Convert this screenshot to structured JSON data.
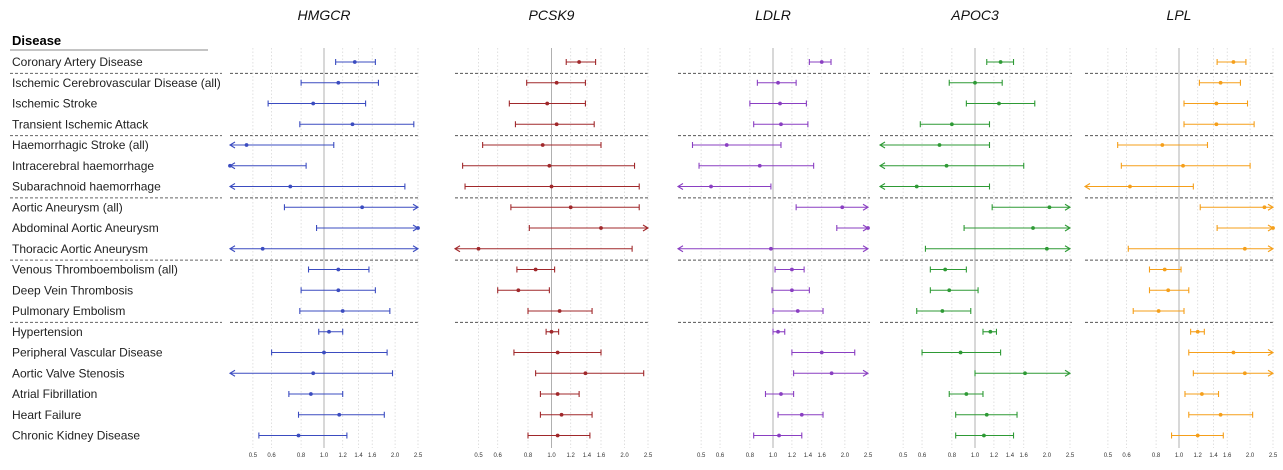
{
  "chart_data": {
    "type": "forest",
    "header": "Disease",
    "diseases": [
      "Coronary Artery Disease",
      "Ischemic Cerebrovascular Disease (all)",
      "Ischemic Stroke",
      "Transient Ischemic Attack",
      "Haemorrhagic Stroke (all)",
      "Intracerebral haemorrhage",
      "Subarachnoid haemorrhage",
      "Aortic Aneurysm (all)",
      "Abdominal Aortic Aneurysm",
      "Thoracic Aortic Aneurysm",
      "Venous Thromboembolism (all)",
      "Deep Vein Thrombosis",
      "Pulmonary Embolism",
      "Hypertension",
      "Peripheral Vascular Disease",
      "Aortic Valve Stenosis",
      "Atrial Fibrillation",
      "Heart Failure",
      "Chronic Kidney Disease"
    ],
    "group_breaks_after": [
      0,
      3,
      6,
      9,
      12
    ],
    "x_scale": "log",
    "xlim": [
      0.4,
      2.5
    ],
    "ticks": [
      {
        "v": 0.5,
        "label": "0.5"
      },
      {
        "v": 0.6,
        "label": "0.6"
      },
      {
        "v": 0.8,
        "label": "0.8"
      },
      {
        "v": 1.0,
        "label": "1.0"
      },
      {
        "v": 1.2,
        "label": "1.2"
      },
      {
        "v": 1.4,
        "label": "1.4"
      },
      {
        "v": 1.6,
        "label": "1.6"
      },
      {
        "v": 2.0,
        "label": "2.0"
      },
      {
        "v": 2.5,
        "label": "2.5"
      }
    ],
    "reference_line": 1.0,
    "grid": true,
    "series": [
      {
        "name": "HMGCR",
        "color": "#3b4cc0",
        "points": [
          [
            1.35,
            1.12,
            1.65
          ],
          [
            1.15,
            0.8,
            1.7
          ],
          [
            0.9,
            0.58,
            1.5
          ],
          [
            1.32,
            0.79,
            2.4
          ],
          [
            0.47,
            0.4,
            1.1
          ],
          [
            0.4,
            0.4,
            0.84
          ],
          [
            0.72,
            0.4,
            2.2
          ],
          [
            1.45,
            0.68,
            2.5
          ],
          [
            2.5,
            0.93,
            2.5
          ],
          [
            0.55,
            0.4,
            2.5
          ],
          [
            1.15,
            0.86,
            1.55
          ],
          [
            1.15,
            0.8,
            1.65
          ],
          [
            1.2,
            0.79,
            1.9
          ],
          [
            1.05,
            0.95,
            1.2
          ],
          [
            1.0,
            0.6,
            1.85
          ],
          [
            0.9,
            0.4,
            1.95
          ],
          [
            0.88,
            0.71,
            1.2
          ],
          [
            1.16,
            0.78,
            1.8
          ],
          [
            0.78,
            0.53,
            1.25
          ]
        ]
      },
      {
        "name": "PCSK9",
        "color": "#a0282b",
        "points": [
          [
            1.3,
            1.15,
            1.52
          ],
          [
            1.05,
            0.79,
            1.38
          ],
          [
            0.96,
            0.67,
            1.38
          ],
          [
            1.05,
            0.71,
            1.5
          ],
          [
            0.92,
            0.52,
            1.6
          ],
          [
            0.98,
            0.43,
            2.2
          ],
          [
            1.0,
            0.44,
            2.3
          ],
          [
            1.2,
            0.68,
            2.3
          ],
          [
            1.6,
            0.81,
            2.5
          ],
          [
            0.5,
            0.4,
            2.15
          ],
          [
            0.86,
            0.72,
            1.03
          ],
          [
            0.73,
            0.6,
            0.98
          ],
          [
            1.08,
            0.8,
            1.47
          ],
          [
            1.0,
            0.95,
            1.07
          ],
          [
            1.06,
            0.7,
            1.6
          ],
          [
            1.38,
            0.86,
            2.4
          ],
          [
            1.06,
            0.9,
            1.3
          ],
          [
            1.1,
            0.9,
            1.47
          ],
          [
            1.06,
            0.8,
            1.44
          ]
        ]
      },
      {
        "name": "LDLR",
        "color": "#8a3fc2",
        "points": [
          [
            1.6,
            1.42,
            1.75
          ],
          [
            1.05,
            0.86,
            1.25
          ],
          [
            1.07,
            0.8,
            1.38
          ],
          [
            1.08,
            0.83,
            1.4
          ],
          [
            0.64,
            0.46,
            1.08
          ],
          [
            0.88,
            0.49,
            1.48
          ],
          [
            0.55,
            0.4,
            0.98
          ],
          [
            1.95,
            1.25,
            2.5
          ],
          [
            2.5,
            1.85,
            2.5
          ],
          [
            0.98,
            0.4,
            2.5
          ],
          [
            1.2,
            1.02,
            1.35
          ],
          [
            1.2,
            0.99,
            1.42
          ],
          [
            1.27,
            1.0,
            1.62
          ],
          [
            1.05,
            1.0,
            1.12
          ],
          [
            1.6,
            1.2,
            2.2
          ],
          [
            1.76,
            1.22,
            2.5
          ],
          [
            1.08,
            0.93,
            1.22
          ],
          [
            1.32,
            1.05,
            1.62
          ],
          [
            1.06,
            0.83,
            1.32
          ]
        ]
      },
      {
        "name": "APOC3",
        "color": "#2e9a35",
        "points": [
          [
            1.28,
            1.12,
            1.45
          ],
          [
            1.0,
            0.78,
            1.3
          ],
          [
            1.26,
            0.92,
            1.78
          ],
          [
            0.8,
            0.59,
            1.15
          ],
          [
            0.71,
            0.4,
            1.15
          ],
          [
            0.76,
            0.4,
            1.6
          ],
          [
            0.57,
            0.4,
            1.15
          ],
          [
            2.05,
            1.18,
            2.5
          ],
          [
            1.75,
            0.9,
            2.5
          ],
          [
            2.0,
            0.62,
            2.5
          ],
          [
            0.75,
            0.65,
            0.92
          ],
          [
            0.78,
            0.65,
            1.03
          ],
          [
            0.73,
            0.57,
            0.96
          ],
          [
            1.16,
            1.08,
            1.23
          ],
          [
            0.87,
            0.6,
            1.28
          ],
          [
            1.62,
            1.0,
            2.5
          ],
          [
            0.92,
            0.78,
            1.08
          ],
          [
            1.12,
            0.83,
            1.5
          ],
          [
            1.09,
            0.83,
            1.45
          ]
        ]
      },
      {
        "name": "LPL",
        "color": "#f59f1a",
        "points": [
          [
            1.7,
            1.45,
            1.92
          ],
          [
            1.5,
            1.22,
            1.82
          ],
          [
            1.44,
            1.05,
            1.95
          ],
          [
            1.44,
            1.05,
            2.08
          ],
          [
            0.85,
            0.55,
            1.32
          ],
          [
            1.04,
            0.57,
            2.0
          ],
          [
            0.62,
            0.4,
            1.15
          ],
          [
            2.3,
            1.23,
            2.5
          ],
          [
            2.5,
            1.45,
            2.5
          ],
          [
            1.9,
            0.61,
            2.5
          ],
          [
            0.87,
            0.75,
            1.02
          ],
          [
            0.9,
            0.75,
            1.1
          ],
          [
            0.82,
            0.64,
            1.05
          ],
          [
            1.2,
            1.12,
            1.28
          ],
          [
            1.7,
            1.1,
            2.5
          ],
          [
            1.9,
            1.15,
            2.5
          ],
          [
            1.25,
            1.06,
            1.47
          ],
          [
            1.5,
            1.1,
            2.05
          ],
          [
            1.2,
            0.93,
            1.54
          ]
        ]
      }
    ]
  }
}
